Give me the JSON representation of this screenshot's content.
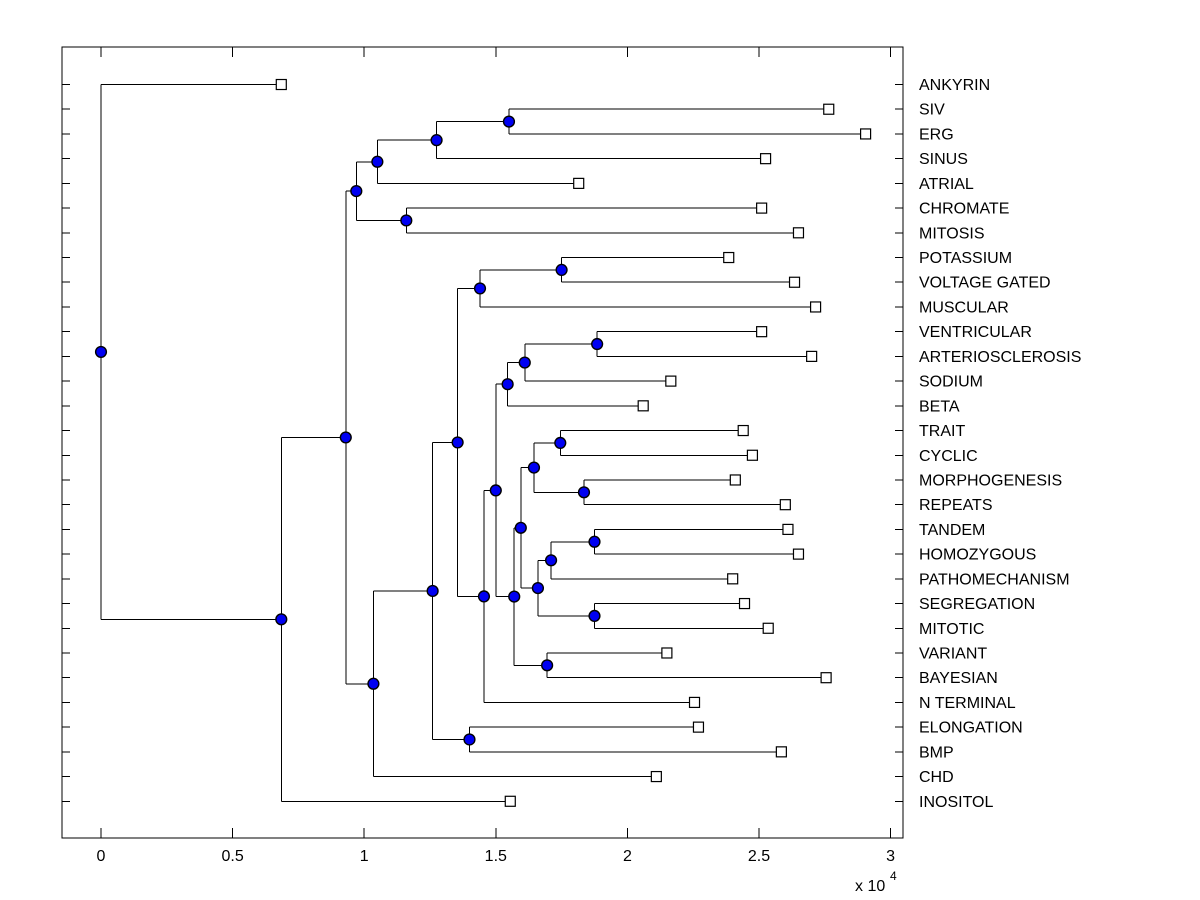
{
  "figure": {
    "background": "#ffffff",
    "box": {
      "stroke": "#000000"
    }
  },
  "chart_data": {
    "type": "dendrogram",
    "orientation": "horizontal-left-to-right",
    "title": "",
    "xlabel": "",
    "ylabel": "",
    "grid": false,
    "axis": {
      "x_tick_labels": [
        "0",
        "0.5",
        "1",
        "1.5",
        "2",
        "2.5",
        "3"
      ],
      "x_tick_values": [
        0,
        0.5,
        1,
        1.5,
        2,
        2.5,
        3
      ],
      "x_multiplier_base": "x 10",
      "x_multiplier_exponent": "4",
      "x_unit_scale": 10000,
      "x_range": [
        0,
        30000
      ]
    },
    "markers": {
      "internal_shape": "circle",
      "internal_fill": "#0000f2",
      "internal_edge": "#000000",
      "leaf_shape": "square",
      "leaf_fill": "#ffffff",
      "leaf_edge": "#000000"
    },
    "line_color": "#000000",
    "leaf_order": [
      "ANKYRIN",
      "SIV",
      "ERG",
      "SINUS",
      "ATRIAL",
      "CHROMATE",
      "MITOSIS",
      "POTASSIUM",
      "VOLTAGE GATED",
      "MUSCULAR",
      "VENTRICULAR",
      "ARTERIOSCLEROSIS",
      "SODIUM",
      "BETA",
      "TRAIT",
      "CYCLIC",
      "MORPHOGENESIS",
      "REPEATS",
      "TANDEM",
      "HOMOZYGOUS",
      "PATHOMECHANISM",
      "SEGREGATION",
      "MITOTIC",
      "VARIANT",
      "BAYESIAN",
      "N TERMINAL",
      "ELONGATION",
      "BMP",
      "CHD",
      "INOSITOL"
    ],
    "tree": {
      "v": 0,
      "c": [
        {
          "l": "ANKYRIN",
          "v": 6850
        },
        {
          "v": 6850,
          "c": [
            {
              "v": 9300,
              "c": [
                {
                  "v": 9700,
                  "c": [
                    {
                      "v": 10500,
                      "c": [
                        {
                          "v": 12750,
                          "c": [
                            {
                              "v": 15500,
                              "c": [
                                {
                                  "l": "SIV",
                                  "v": 27650
                                },
                                {
                                  "l": "ERG",
                                  "v": 29050
                                }
                              ]
                            },
                            {
                              "l": "SINUS",
                              "v": 25250
                            }
                          ]
                        },
                        {
                          "l": "ATRIAL",
                          "v": 18150
                        }
                      ]
                    },
                    {
                      "v": 11600,
                      "c": [
                        {
                          "l": "CHROMATE",
                          "v": 25100
                        },
                        {
                          "l": "MITOSIS",
                          "v": 26500
                        }
                      ]
                    }
                  ]
                },
                {
                  "v": 10350,
                  "c": [
                    {
                      "v": 12600,
                      "c": [
                        {
                          "v": 13550,
                          "c": [
                            {
                              "v": 14400,
                              "c": [
                                {
                                  "v": 17500,
                                  "c": [
                                    {
                                      "l": "POTASSIUM",
                                      "v": 23850
                                    },
                                    {
                                      "l": "VOLTAGE GATED",
                                      "v": 26350
                                    }
                                  ]
                                },
                                {
                                  "l": "MUSCULAR",
                                  "v": 27150
                                }
                              ]
                            },
                            {
                              "v": 14550,
                              "c": [
                                {
                                  "v": 15000,
                                  "c": [
                                    {
                                      "v": 15450,
                                      "c": [
                                        {
                                          "v": 16100,
                                          "c": [
                                            {
                                              "v": 18850,
                                              "c": [
                                                {
                                                  "l": "VENTRICULAR",
                                                  "v": 25100
                                                },
                                                {
                                                  "l": "ARTERIOSCLEROSIS",
                                                  "v": 27000
                                                }
                                              ]
                                            },
                                            {
                                              "l": "SODIUM",
                                              "v": 21650
                                            }
                                          ]
                                        },
                                        {
                                          "l": "BETA",
                                          "v": 20600
                                        }
                                      ]
                                    },
                                    {
                                      "v": 15700,
                                      "c": [
                                        {
                                          "v": 15950,
                                          "c": [
                                            {
                                              "v": 16450,
                                              "c": [
                                                {
                                                  "v": 17450,
                                                  "c": [
                                                    {
                                                      "l": "TRAIT",
                                                      "v": 24400
                                                    },
                                                    {
                                                      "l": "CYCLIC",
                                                      "v": 24750
                                                    }
                                                  ]
                                                },
                                                {
                                                  "v": 18350,
                                                  "c": [
                                                    {
                                                      "l": "MORPHOGENESIS",
                                                      "v": 24100
                                                    },
                                                    {
                                                      "l": "REPEATS",
                                                      "v": 26000
                                                    }
                                                  ]
                                                }
                                              ]
                                            },
                                            {
                                              "v": 16600,
                                              "c": [
                                                {
                                                  "v": 17100,
                                                  "c": [
                                                    {
                                                      "v": 18750,
                                                      "c": [
                                                        {
                                                          "l": "TANDEM",
                                                          "v": 26100
                                                        },
                                                        {
                                                          "l": "HOMOZYGOUS",
                                                          "v": 26500
                                                        }
                                                      ]
                                                    },
                                                    {
                                                      "l": "PATHOMECHANISM",
                                                      "v": 24000
                                                    }
                                                  ]
                                                },
                                                {
                                                  "v": 18750,
                                                  "c": [
                                                    {
                                                      "l": "SEGREGATION",
                                                      "v": 24450
                                                    },
                                                    {
                                                      "l": "MITOTIC",
                                                      "v": 25350
                                                    }
                                                  ]
                                                }
                                              ]
                                            }
                                          ]
                                        },
                                        {
                                          "v": 16950,
                                          "c": [
                                            {
                                              "l": "VARIANT",
                                              "v": 21500
                                            },
                                            {
                                              "l": "BAYESIAN",
                                              "v": 27550
                                            }
                                          ]
                                        }
                                      ]
                                    }
                                  ]
                                },
                                {
                                  "l": "N TERMINAL",
                                  "v": 22550
                                }
                              ]
                            }
                          ]
                        },
                        {
                          "v": 14000,
                          "c": [
                            {
                              "l": "ELONGATION",
                              "v": 22700
                            },
                            {
                              "l": "BMP",
                              "v": 25850
                            }
                          ]
                        }
                      ]
                    },
                    {
                      "l": "CHD",
                      "v": 21100
                    }
                  ]
                }
              ]
            },
            {
              "l": "INOSITOL",
              "v": 15550
            }
          ]
        }
      ]
    }
  }
}
